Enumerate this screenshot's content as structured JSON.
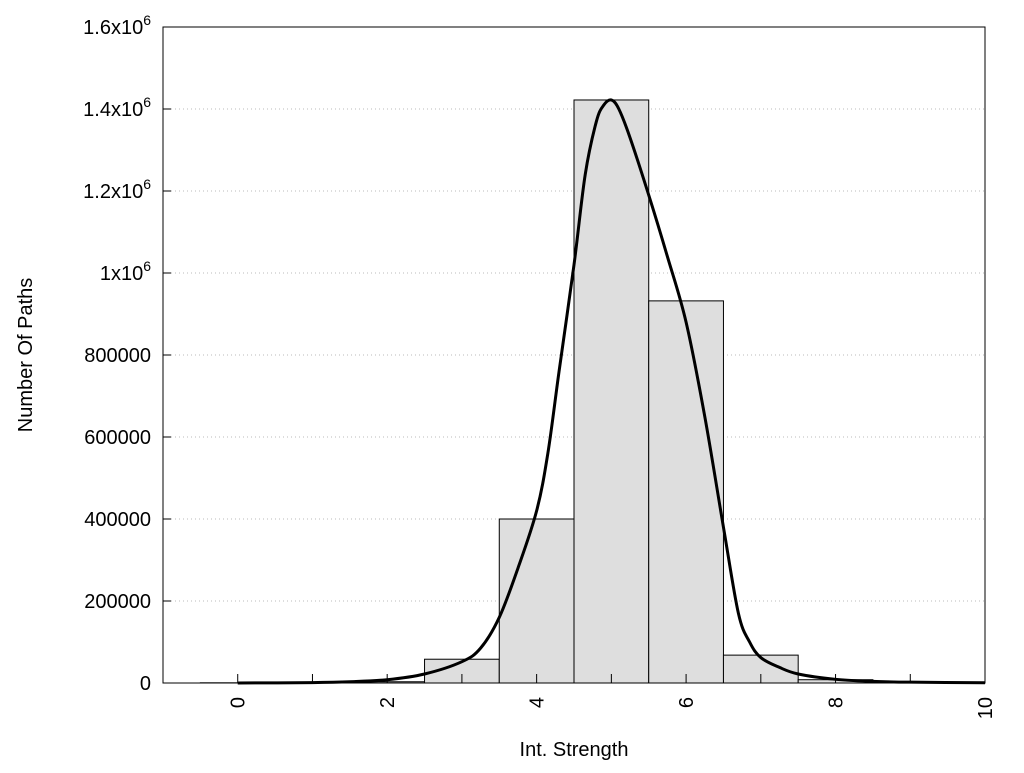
{
  "chart_data": {
    "type": "bar",
    "title": "",
    "xlabel": "Int. Strength",
    "ylabel": "Number Of Paths",
    "xlim": [
      -1,
      10
    ],
    "ylim": [
      0,
      1600000
    ],
    "grid": "horizontal-dotted",
    "bar_color": "#dedede",
    "x_ticks": [
      {
        "value": 0,
        "label": "0"
      },
      {
        "value": 2,
        "label": "2"
      },
      {
        "value": 4,
        "label": "4"
      },
      {
        "value": 6,
        "label": "6"
      },
      {
        "value": 8,
        "label": "8"
      },
      {
        "value": 10,
        "label": "10"
      }
    ],
    "y_ticks": [
      {
        "value": 0,
        "label": "0",
        "sup": ""
      },
      {
        "value": 200000,
        "label": "200000",
        "sup": ""
      },
      {
        "value": 400000,
        "label": "400000",
        "sup": ""
      },
      {
        "value": 600000,
        "label": "600000",
        "sup": ""
      },
      {
        "value": 800000,
        "label": "800000",
        "sup": ""
      },
      {
        "value": 1000000,
        "label": "1x10",
        "sup": "6"
      },
      {
        "value": 1200000,
        "label": "1.2x10",
        "sup": "6"
      },
      {
        "value": 1400000,
        "label": "1.4x10",
        "sup": "6"
      },
      {
        "value": 1600000,
        "label": "1.6x10",
        "sup": "6"
      }
    ],
    "bars": {
      "x": [
        0,
        1,
        2,
        3,
        4,
        5,
        6,
        7,
        8
      ],
      "values": [
        500,
        1000,
        3000,
        58000,
        400000,
        1422000,
        932000,
        68000,
        8000
      ],
      "width": 1
    },
    "curve": {
      "x": [
        0,
        1,
        1.5,
        2,
        2.5,
        3,
        3.25,
        3.5,
        3.75,
        4,
        4.15,
        4.3,
        4.5,
        4.65,
        4.8,
        4.9,
        5,
        5.1,
        5.25,
        5.5,
        5.75,
        6,
        6.25,
        6.5,
        6.7,
        6.85,
        7,
        7.25,
        7.5,
        8,
        8.5,
        9,
        10
      ],
      "values": [
        0,
        1000,
        3000,
        8000,
        22000,
        52000,
        85000,
        160000,
        280000,
        420000,
        560000,
        760000,
        1020000,
        1240000,
        1370000,
        1410000,
        1422000,
        1400000,
        1330000,
        1190000,
        1040000,
        880000,
        650000,
        380000,
        170000,
        100000,
        62000,
        38000,
        22000,
        9000,
        4000,
        2000,
        500
      ]
    }
  }
}
